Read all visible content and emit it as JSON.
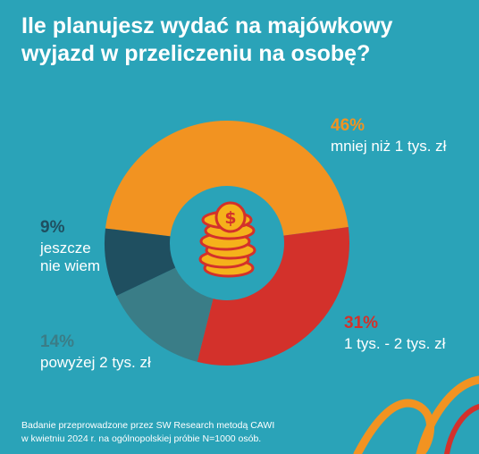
{
  "title_lines": [
    "Ile planujesz wydać na majówkowy",
    "wyjazd w przeliczeniu na osobę?"
  ],
  "chart_data": {
    "type": "pie",
    "donut": true,
    "categories": [
      "mniej niż 1 tys. zł",
      "1 tys. - 2 tys. zł",
      "powyżej 2 tys. zł",
      "jeszcze nie wiem"
    ],
    "values": [
      46,
      31,
      14,
      9
    ],
    "value_labels": [
      "46%",
      "31%",
      "14%",
      "9%"
    ],
    "colors": [
      "#F29321",
      "#D3312B",
      "#3A7D87",
      "#1F4F60"
    ]
  },
  "labels": {
    "less_1k": {
      "pct": "46%",
      "text_lines": [
        "mniej niż 1 tys. zł"
      ]
    },
    "k1_2": {
      "pct": "31%",
      "text_lines": [
        "1 tys. - 2 tys. zł"
      ]
    },
    "above_2k": {
      "pct": "14%",
      "text_lines": [
        "powyżej 2 tys. zł"
      ]
    },
    "dont_know": {
      "pct": "9%",
      "text_lines": [
        "jeszcze",
        "nie wiem"
      ]
    }
  },
  "center_icon": "coin-stack-icon",
  "footer_lines": [
    "Badanie przeprowadzone przez SW Research metodą CAWI",
    "w kwietniu 2024 r. na ogólnopolskiej próbie N=1000 osób."
  ],
  "colors": {
    "background": "#2AA3B8",
    "pct_less_1k": "#F29321",
    "pct_1k_2k": "#D3312B",
    "pct_above_2k": "#3A7D87",
    "pct_dont_know": "#1F4F60",
    "coin_gold": "#F5B21B",
    "coin_red": "#D3312B"
  }
}
